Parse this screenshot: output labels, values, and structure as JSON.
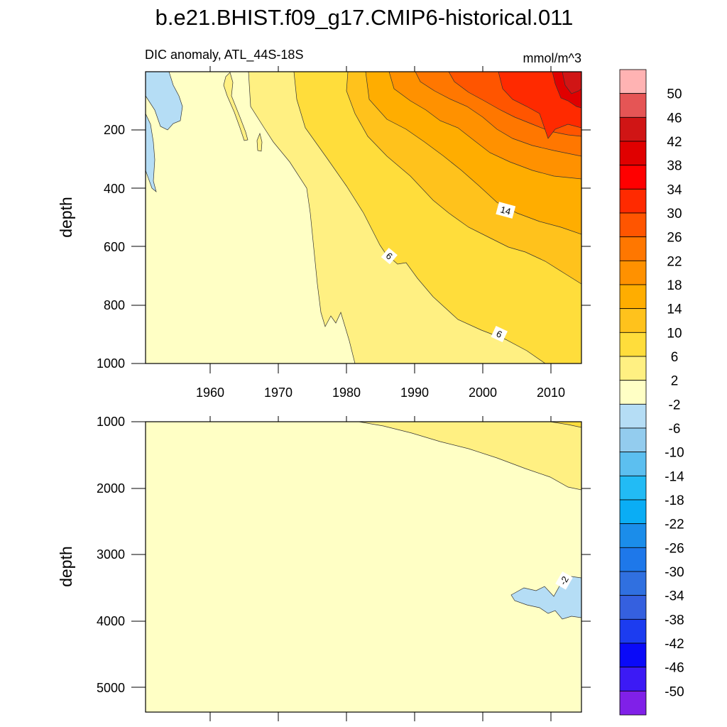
{
  "chart_data": {
    "type": "heatmap",
    "title": "b.e21.BHIST.f09_g17.CMIP6-historical.011",
    "subtitle_left": "DIC anomaly, ATL_44S-18S",
    "units": "mmol/m^3",
    "xlim": [
      1950,
      2015
    ],
    "x_ticks": [
      "1960",
      "1970",
      "1980",
      "1990",
      "2000",
      "2010"
    ],
    "colorbar": {
      "labels": [
        "50",
        "46",
        "42",
        "38",
        "34",
        "30",
        "26",
        "22",
        "18",
        "14",
        "10",
        "6",
        "2",
        "-2",
        "-6",
        "-10",
        "-14",
        "-18",
        "-22",
        "-26",
        "-30",
        "-34",
        "-38",
        "-42",
        "-46",
        "-50"
      ],
      "colors": [
        "#FFB3B3",
        "#E55555",
        "#D01515",
        "#E00000",
        "#FF0000",
        "#FF2A00",
        "#FF5500",
        "#FF7700",
        "#FF9100",
        "#FFAD00",
        "#FFC21C",
        "#FFDD3B",
        "#FFF082",
        "#FFFFC5",
        "#B5DDF5",
        "#93CCEE",
        "#5CBFF0",
        "#22BBF5",
        "#0AADF5",
        "#1B8DEA",
        "#1E78EA",
        "#3070E0",
        "#3560DF",
        "#1C3CF0",
        "#0A0AF8",
        "#3C1AF5",
        "#8020E8"
      ]
    },
    "panels": [
      {
        "name": "upper",
        "ylabel": "depth",
        "ylim": [
          1000,
          0
        ],
        "y_ticks": [
          "200",
          "400",
          "600",
          "800",
          "1000"
        ],
        "contour_labels": [
          "14",
          "6",
          "6"
        ]
      },
      {
        "name": "lower",
        "ylabel": "depth",
        "ylim": [
          5350,
          1000
        ],
        "y_ticks": [
          "1000",
          "2000",
          "3000",
          "4000",
          "5000"
        ],
        "contour_labels": [
          "-2"
        ]
      }
    ]
  }
}
